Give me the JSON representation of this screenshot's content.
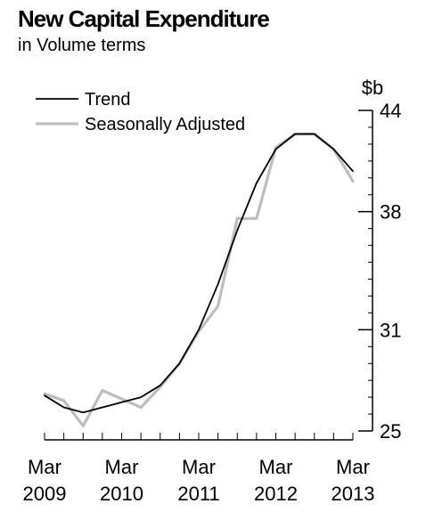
{
  "title": "New Capital Expenditure",
  "subtitle": "in Volume terms",
  "chart_data": {
    "type": "line",
    "unit": "$b",
    "x": [
      "Mar 2009",
      "Jun 2009",
      "Sep 2009",
      "Dec 2009",
      "Mar 2010",
      "Jun 2010",
      "Sep 2010",
      "Dec 2010",
      "Mar 2011",
      "Jun 2011",
      "Sep 2011",
      "Dec 2011",
      "Mar 2012",
      "Jun 2012",
      "Sep 2012",
      "Dec 2012",
      "Mar 2013"
    ],
    "x_ticks": [
      {
        "month": "Mar",
        "year": "2009",
        "index": 0
      },
      {
        "month": "Mar",
        "year": "2010",
        "index": 4
      },
      {
        "month": "Mar",
        "year": "2011",
        "index": 8
      },
      {
        "month": "Mar",
        "year": "2012",
        "index": 12
      },
      {
        "month": "Mar",
        "year": "2013",
        "index": 16
      }
    ],
    "y_ticks": [
      "44",
      "38",
      "31",
      "25"
    ],
    "ylim": [
      25,
      44
    ],
    "legend_position": "top-left",
    "series": [
      {
        "name": "Trend",
        "color": "#000000",
        "values": [
          27.1,
          26.4,
          26.1,
          26.4,
          26.7,
          27.0,
          27.7,
          29.0,
          31.0,
          33.7,
          36.9,
          39.7,
          41.7,
          42.6,
          42.6,
          41.7,
          40.4
        ]
      },
      {
        "name": "Seasonally Adjusted",
        "color": "#bdbdbd",
        "values": [
          27.2,
          26.8,
          25.3,
          27.4,
          26.9,
          26.4,
          27.6,
          29.0,
          30.9,
          32.4,
          37.6,
          37.6,
          41.8,
          42.6,
          42.6,
          41.7,
          39.8
        ]
      }
    ]
  }
}
